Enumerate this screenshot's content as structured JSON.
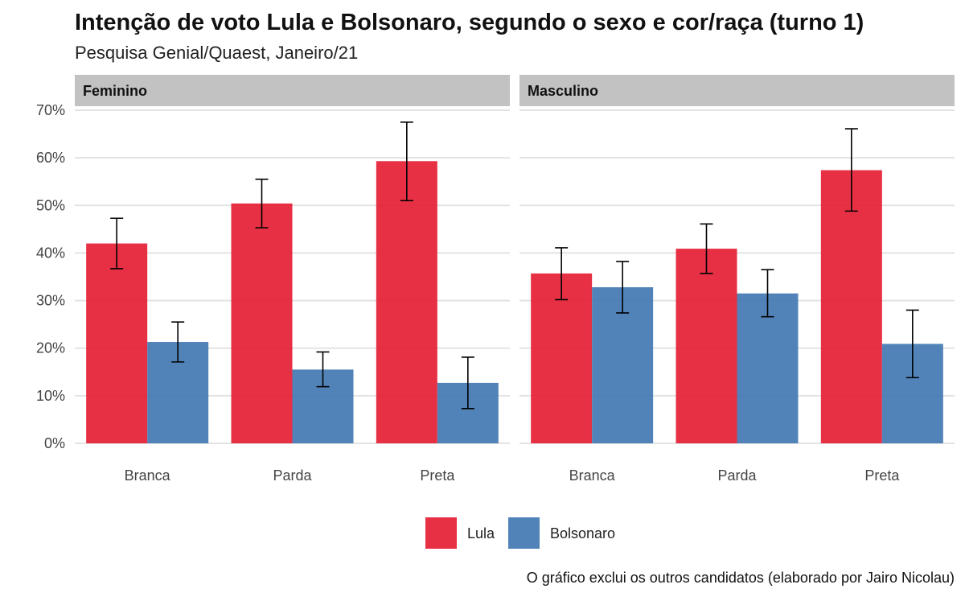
{
  "chart_data": {
    "type": "bar",
    "title": "Intenção de voto Lula e Bolsonaro, segundo o sexo e cor/raça (turno 1)",
    "subtitle": "Pesquisa Genial/Quaest, Janeiro/21",
    "caption": "O gráfico exclui os outros candidatos (elaborado por Jairo Nicolau)",
    "ylim": [
      0,
      70
    ],
    "y_ticks": [
      0,
      10,
      20,
      30,
      40,
      50,
      60,
      70
    ],
    "y_tick_labels": [
      "0%",
      "10%",
      "20%",
      "30%",
      "40%",
      "50%",
      "60%",
      "70%"
    ],
    "categories": [
      "Branca",
      "Parda",
      "Preta"
    ],
    "series_names": [
      "Lula",
      "Bolsonaro"
    ],
    "colors": {
      "Lula": "#e41a30",
      "Bolsonaro": "#3e76b1"
    },
    "legend_position": "bottom",
    "panels": [
      {
        "label": "Feminino",
        "series": [
          {
            "name": "Lula",
            "values": [
              42,
              50.4,
              59.3
            ],
            "err_low": [
              36.7,
              45.3,
              51
            ],
            "err_high": [
              47.3,
              55.5,
              67.5
            ]
          },
          {
            "name": "Bolsonaro",
            "values": [
              21.3,
              15.5,
              12.7
            ],
            "err_low": [
              17.1,
              11.9,
              7.3
            ],
            "err_high": [
              25.5,
              19.2,
              18.1
            ]
          }
        ]
      },
      {
        "label": "Masculino",
        "series": [
          {
            "name": "Lula",
            "values": [
              35.7,
              40.9,
              57.4
            ],
            "err_low": [
              30.2,
              35.7,
              48.8
            ],
            "err_high": [
              41.1,
              46.1,
              66.1
            ]
          },
          {
            "name": "Bolsonaro",
            "values": [
              32.8,
              31.5,
              20.9
            ],
            "err_low": [
              27.4,
              26.6,
              13.8
            ],
            "err_high": [
              38.2,
              36.5,
              28
            ]
          }
        ]
      }
    ]
  }
}
